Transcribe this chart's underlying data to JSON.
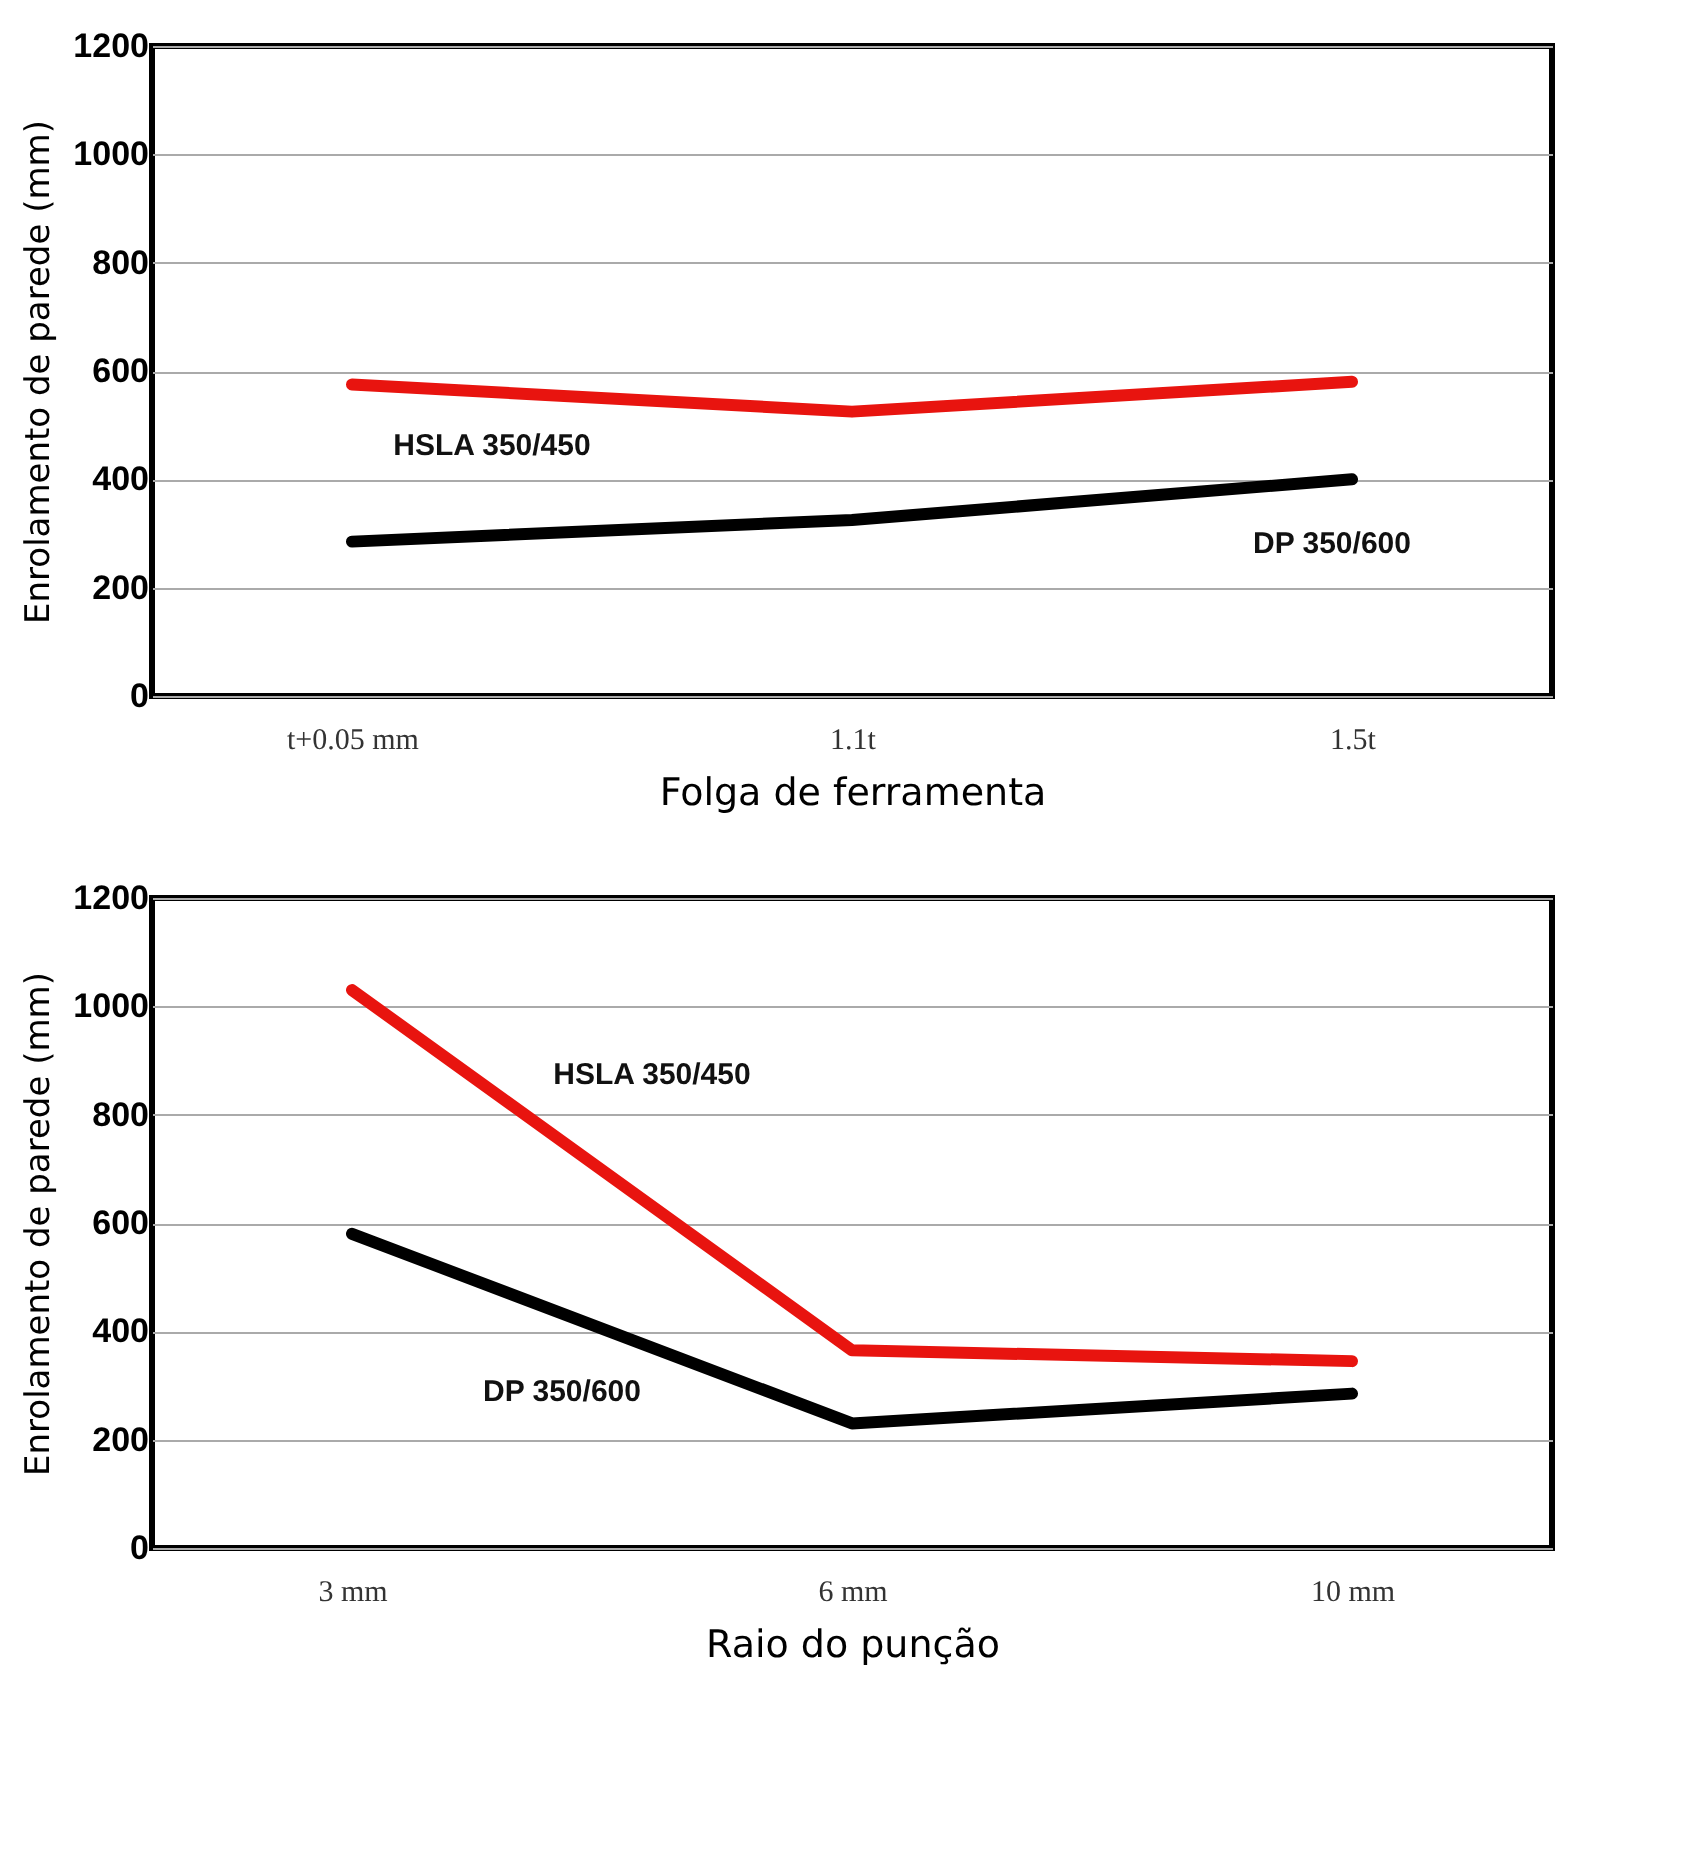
{
  "chart_data": [
    {
      "type": "line",
      "xlabel": "Folga de ferramenta",
      "ylabel": "Enrolamento de parede (mm)",
      "categories": [
        "t+0.05 mm",
        "1.1t",
        "1.5t"
      ],
      "series": [
        {
          "name": "HSLA 350/450",
          "color": "#e8140f",
          "values": [
            575,
            525,
            580
          ]
        },
        {
          "name": "DP 350/600",
          "color": "#000000",
          "values": [
            285,
            325,
            400
          ]
        }
      ],
      "ylim": [
        0,
        1200
      ],
      "yticks": [
        0,
        200,
        400,
        600,
        800,
        1000,
        1200
      ],
      "grid": "y",
      "line_style": "solid",
      "marker": "none"
    },
    {
      "type": "line",
      "xlabel": "Raio do punção",
      "ylabel": "Enrolamento de parede (mm)",
      "categories": [
        "3 mm",
        "6 mm",
        "10 mm"
      ],
      "series": [
        {
          "name": "HSLA 350/450",
          "color": "#e8140f",
          "values": [
            1030,
            365,
            345
          ]
        },
        {
          "name": "DP 350/600",
          "color": "#000000",
          "values": [
            580,
            230,
            285
          ]
        }
      ],
      "ylim": [
        0,
        1200
      ],
      "yticks": [
        0,
        200,
        400,
        600,
        800,
        1000,
        1200
      ],
      "grid": "y",
      "line_style": "solid",
      "marker": "none"
    }
  ]
}
